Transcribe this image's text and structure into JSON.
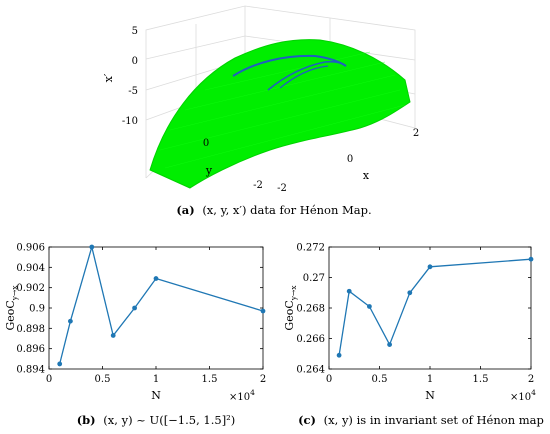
{
  "figure": {
    "top_caption": {
      "label": "(a)",
      "text": "(x, y, x′) data for Hénon Map."
    },
    "left_caption": {
      "label": "(b)",
      "text": "(x, y) ~ U([−1.5, 1.5]²)"
    },
    "right_caption": {
      "label": "(c)",
      "text": "(x, y) is in invariant set of Hénon map"
    }
  },
  "chart_data": [
    {
      "type": "scatter3d",
      "title": "",
      "xlabel": "x",
      "ylabel": "y",
      "zlabel": "x′",
      "x_ticks": [
        "-2",
        "0",
        "2"
      ],
      "y_ticks": [
        "-2",
        "0"
      ],
      "z_ticks": [
        "5",
        "0",
        "-5",
        "-10"
      ],
      "xlim": [
        -2,
        2
      ],
      "ylim": [
        -2,
        2
      ],
      "zlim": [
        -10,
        5
      ],
      "grid": true,
      "surface_color": "#00ee00",
      "attractor_color": "#1f5fbf",
      "surface": "x′ = 1 − 1.4·x² + 0.3·y",
      "attractor": "Hénon map invariant set"
    },
    {
      "type": "line",
      "title": "",
      "xlabel": "N",
      "ylabel": "GeoC",
      "ylabel_sub": "y→x",
      "x_multiplier": "×10",
      "x_multiplier_exp": "4",
      "x": [
        1000,
        2000,
        4000,
        6000,
        8000,
        10000,
        20000
      ],
      "y": [
        0.8945,
        0.8987,
        0.906,
        0.8973,
        0.9,
        0.9029,
        0.8997
      ],
      "xlim": [
        0,
        20000
      ],
      "ylim": [
        0.894,
        0.906
      ],
      "x_ticks": [
        0,
        5000,
        10000,
        15000,
        20000
      ],
      "x_tick_labels": [
        "0",
        "0.5",
        "1",
        "1.5",
        "2"
      ],
      "y_ticks": [
        0.894,
        0.896,
        0.898,
        0.9,
        0.902,
        0.904,
        0.906
      ],
      "y_tick_labels": [
        "0.894",
        "0.896",
        "0.898",
        "0.9",
        "0.902",
        "0.904",
        "0.906"
      ],
      "color": "#1f77b4",
      "grid": false
    },
    {
      "type": "line",
      "title": "",
      "xlabel": "N",
      "ylabel": "GeoC",
      "ylabel_sub": "y→x",
      "x_multiplier": "×10",
      "x_multiplier_exp": "4",
      "x": [
        1000,
        2000,
        4000,
        6000,
        8000,
        10000,
        20000
      ],
      "y": [
        0.2649,
        0.2691,
        0.2681,
        0.2656,
        0.269,
        0.2707,
        0.2712
      ],
      "xlim": [
        0,
        20000
      ],
      "ylim": [
        0.264,
        0.272
      ],
      "x_ticks": [
        0,
        5000,
        10000,
        15000,
        20000
      ],
      "x_tick_labels": [
        "0",
        "0.5",
        "1",
        "1.5",
        "2"
      ],
      "y_ticks": [
        0.264,
        0.266,
        0.268,
        0.27,
        0.272
      ],
      "y_tick_labels": [
        "0.264",
        "0.266",
        "0.268",
        "0.27",
        "0.272"
      ],
      "color": "#1f77b4",
      "grid": false
    }
  ]
}
